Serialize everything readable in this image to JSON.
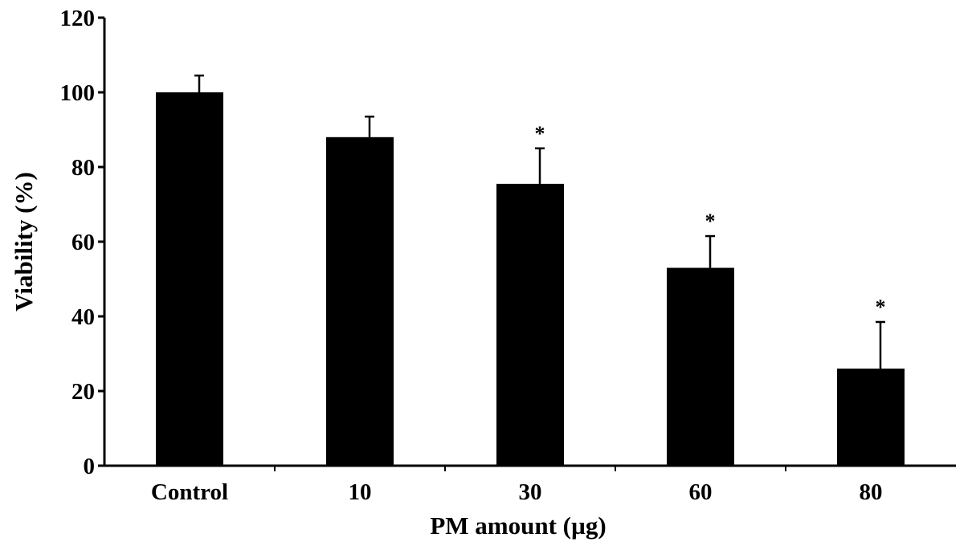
{
  "chart_data": {
    "type": "bar",
    "categories": [
      "Control",
      "10",
      "30",
      "60",
      "80"
    ],
    "values": [
      100,
      88,
      75.5,
      53,
      26
    ],
    "errors": [
      4.5,
      5.5,
      9.5,
      8.5,
      12.5
    ],
    "significance": [
      "",
      "",
      "*",
      "*",
      "*"
    ],
    "xlabel": "PM amount (µg)",
    "ylabel": "Viability (%)",
    "ylim": [
      0,
      120
    ],
    "yticks": [
      0,
      20,
      40,
      60,
      80,
      100,
      120
    ],
    "grid": false,
    "bar_color": "#000000"
  }
}
